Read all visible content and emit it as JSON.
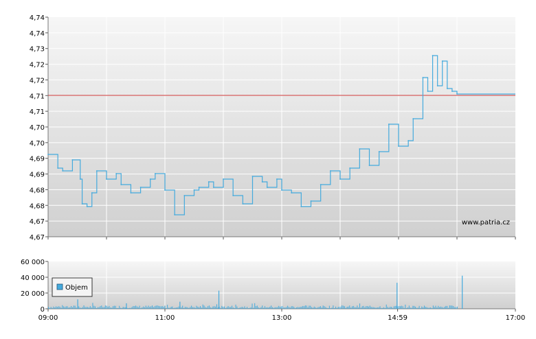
{
  "chart_data": [
    {
      "type": "line",
      "title": "",
      "xlabel": "",
      "ylabel": "",
      "ylim": [
        4.665,
        4.745
      ],
      "y_tick_labels": [
        "4,67",
        "4,67",
        "4,68",
        "4,68",
        "4,69",
        "4,69",
        "4,70",
        "4,70",
        "4,71",
        "4,71",
        "4,72",
        "4,72",
        "4,73",
        "4,74",
        "4,74"
      ],
      "x_ticks": [
        "09:00",
        "11:00",
        "13:00",
        "14:59",
        "17:00"
      ],
      "reference_line": {
        "value": 4.7165,
        "color": "#cc3333"
      },
      "watermark": "www.patria.cz",
      "grid": true,
      "series": [
        {
          "color": "#44aadd",
          "x": [
            "09:00",
            "09:10",
            "09:15",
            "09:25",
            "09:33",
            "09:35",
            "09:40",
            "09:45",
            "09:50",
            "10:00",
            "10:10",
            "10:15",
            "10:25",
            "10:35",
            "10:45",
            "10:50",
            "11:00",
            "11:10",
            "11:20",
            "11:30",
            "11:35",
            "11:45",
            "11:50",
            "12:00",
            "12:10",
            "12:20",
            "12:30",
            "12:40",
            "12:45",
            "12:55",
            "13:00",
            "13:10",
            "13:20",
            "13:30",
            "13:40",
            "13:50",
            "14:00",
            "14:10",
            "14:20",
            "14:30",
            "14:40",
            "14:50",
            "15:00",
            "15:10",
            "15:15",
            "15:25",
            "15:30",
            "15:35",
            "15:40",
            "15:45",
            "15:50",
            "15:55",
            "16:00"
          ],
          "values": [
            4.695,
            4.69,
            4.689,
            4.693,
            4.686,
            4.677,
            4.676,
            4.681,
            4.689,
            4.686,
            4.688,
            4.684,
            4.681,
            4.683,
            4.686,
            4.688,
            4.682,
            4.673,
            4.68,
            4.682,
            4.683,
            4.685,
            4.683,
            4.686,
            4.68,
            4.677,
            4.687,
            4.685,
            4.683,
            4.686,
            4.682,
            4.681,
            4.676,
            4.678,
            4.684,
            4.689,
            4.686,
            4.69,
            4.697,
            4.691,
            4.696,
            4.706,
            4.698,
            4.7,
            4.708,
            4.723,
            4.718,
            4.731,
            4.72,
            4.729,
            4.719,
            4.718,
            4.717
          ]
        }
      ]
    },
    {
      "type": "bar",
      "title": "",
      "xlabel": "",
      "ylabel": "",
      "ylim": [
        0,
        60000
      ],
      "y_tick_labels": [
        "0",
        "20 000",
        "40 000",
        "60 000"
      ],
      "x_ticks": [
        "09:00",
        "11:00",
        "13:00",
        "14:59",
        "17:00"
      ],
      "legend": {
        "label": "Objem",
        "color": "#44aadd",
        "placement": "left"
      },
      "series": [
        {
          "name": "Objem",
          "color": "#44aadd",
          "x": [
            "09:30",
            "10:20",
            "11:15",
            "11:55",
            "14:58",
            "16:05"
          ],
          "values": [
            12000,
            7000,
            9000,
            23000,
            33000,
            42000
          ]
        }
      ]
    }
  ]
}
